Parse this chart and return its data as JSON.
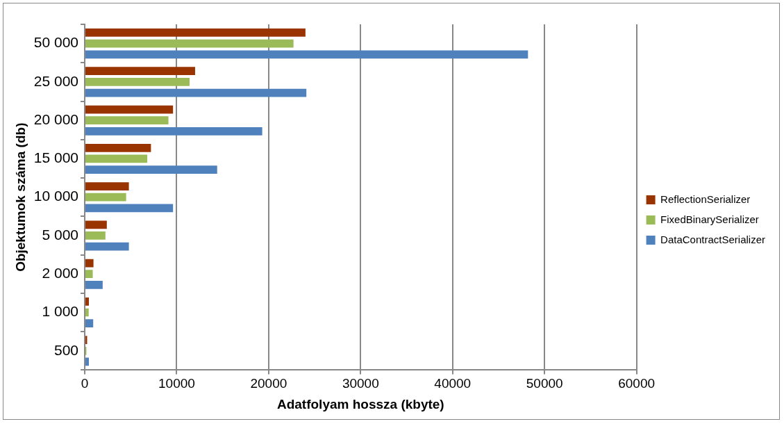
{
  "chart_data": {
    "type": "bar",
    "orientation": "horizontal",
    "xlabel": "Adatfolyam hossza (kbyte)",
    "ylabel": "Objektumok száma (db)",
    "categories": [
      "50 000",
      "25 000",
      "20 000",
      "15 000",
      "10 000",
      "5 000",
      "2 000",
      "1 000",
      "500"
    ],
    "series": [
      {
        "name": "ReflectionSerializer",
        "color": "#993300",
        "values": [
          24000,
          12000,
          9600,
          7200,
          4800,
          2400,
          950,
          450,
          260
        ]
      },
      {
        "name": "FixedBinarySerializer",
        "color": "#9bbb59",
        "values": [
          22700,
          11400,
          9100,
          6800,
          4500,
          2250,
          870,
          430,
          180
        ]
      },
      {
        "name": "DataContractSerializer",
        "color": "#4f81bd",
        "values": [
          48200,
          24100,
          19300,
          14400,
          9600,
          4800,
          1950,
          920,
          450
        ]
      }
    ],
    "xlim": [
      0,
      60000
    ],
    "xticks": [
      0,
      10000,
      20000,
      30000,
      40000,
      50000,
      60000
    ],
    "grid": "x",
    "legend": "right"
  }
}
